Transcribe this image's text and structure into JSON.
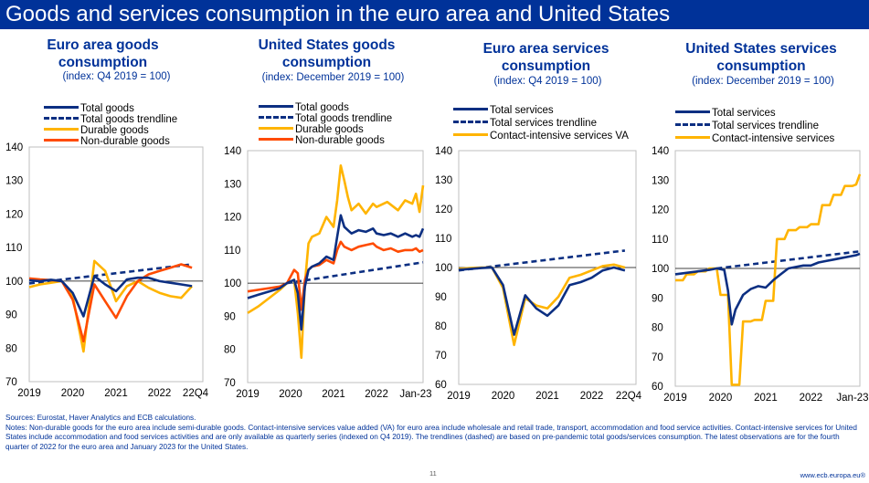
{
  "page_title": "Goods and services consumption in the euro area and United States",
  "colors": {
    "brand_blue": "#003299",
    "navy_line": "#0c2f82",
    "durable_yellow": "#ffb400",
    "nondurable_orange": "#ff4b00",
    "title_bar": "#003299"
  },
  "notes": {
    "sources": "Sources: Eurostat, Haver Analytics and ECB calculations.",
    "text": "Notes: Non-durable goods for the euro area include semi-durable goods. Contact-intensive services value added (VA) for euro area include wholesale and retail trade, transport, accommodation and food service activities. Contact-intensive services for United States include accommodation and food services activities and are only available as quarterly series (indexed on Q4 2019). The trendlines (dashed) are based on pre-pandemic total goods/services consumption. The latest observations are for the fourth quarter of 2022 for the euro area and January 2023 for the United States."
  },
  "footer": {
    "page_number": "11",
    "website": "www.ecb.europa.eu®"
  },
  "chart_data": [
    {
      "type": "line",
      "title": "Euro area goods consumption",
      "subtitle": "(index: Q4 2019 = 100)",
      "x_tick_labels": [
        "2019",
        "2020",
        "2021",
        "2022",
        "22Q4"
      ],
      "x_range": [
        2019.0,
        2023.0
      ],
      "ylim": [
        70,
        140
      ],
      "yticks": [
        70,
        80,
        90,
        100,
        110,
        120,
        130,
        140
      ],
      "legend_position": "top",
      "series": [
        {
          "name": "Total goods",
          "style": "solid",
          "color": "#0c2f82",
          "x": [
            2019.0,
            2019.25,
            2019.5,
            2019.75,
            2020.0,
            2020.25,
            2020.5,
            2020.75,
            2021.0,
            2021.25,
            2021.5,
            2021.75,
            2022.0,
            2022.25,
            2022.5,
            2022.75
          ],
          "values": [
            100.2,
            100.0,
            100.4,
            100.0,
            96.5,
            89.5,
            101.5,
            99.0,
            97.0,
            100.5,
            101.0,
            101.0,
            100.0,
            99.5,
            99.0,
            98.5
          ]
        },
        {
          "name": "Total goods trendline",
          "style": "dashed",
          "color": "#0c2f82",
          "x": [
            2019.0,
            2022.75
          ],
          "values": [
            99.3,
            105.0
          ]
        },
        {
          "name": "Durable goods",
          "style": "solid",
          "color": "#ffb400",
          "x": [
            2019.0,
            2019.25,
            2019.5,
            2019.75,
            2020.0,
            2020.25,
            2020.5,
            2020.75,
            2021.0,
            2021.25,
            2021.5,
            2021.75,
            2022.0,
            2022.25,
            2022.5,
            2022.75
          ],
          "values": [
            98.2,
            99.0,
            99.5,
            100.0,
            95.5,
            79.0,
            106.0,
            103.0,
            94.0,
            98.5,
            100.0,
            98.0,
            96.5,
            95.5,
            95.0,
            98.5
          ]
        },
        {
          "name": "Non-durable goods",
          "style": "solid",
          "color": "#ff4b00",
          "x": [
            2019.0,
            2019.25,
            2019.5,
            2019.75,
            2020.0,
            2020.25,
            2020.5,
            2020.75,
            2021.0,
            2021.25,
            2021.5,
            2021.75,
            2022.0,
            2022.25,
            2022.5,
            2022.75
          ],
          "values": [
            100.8,
            100.5,
            100.3,
            100.0,
            94.5,
            82.0,
            99.0,
            94.0,
            89.0,
            95.5,
            100.0,
            102.0,
            103.0,
            104.0,
            105.0,
            104.0
          ]
        }
      ]
    },
    {
      "type": "line",
      "title": "United States goods consumption",
      "subtitle": "(index: December 2019 = 100)",
      "x_tick_labels": [
        "2019",
        "2020",
        "2021",
        "2022",
        "Jan-23"
      ],
      "x_range": [
        2019.0,
        2023.083
      ],
      "ylim": [
        70,
        140
      ],
      "yticks": [
        70,
        80,
        90,
        100,
        110,
        120,
        130,
        140
      ],
      "legend_position": "top",
      "series": [
        {
          "name": "Total goods",
          "style": "solid",
          "color": "#0c2f82",
          "x": [
            2019.0,
            2019.25,
            2019.5,
            2019.75,
            2019.917,
            2020.083,
            2020.167,
            2020.25,
            2020.333,
            2020.417,
            2020.5,
            2020.667,
            2020.833,
            2021.0,
            2021.083,
            2021.167,
            2021.25,
            2021.417,
            2021.583,
            2021.75,
            2021.917,
            2022.0,
            2022.167,
            2022.333,
            2022.5,
            2022.667,
            2022.833,
            2022.917,
            2023.0,
            2023.083
          ],
          "values": [
            95.5,
            96.5,
            97.5,
            98.5,
            100.0,
            101.0,
            97.0,
            86.0,
            99.0,
            104.0,
            105.0,
            106.0,
            108.0,
            107.0,
            114.0,
            120.5,
            117.0,
            115.0,
            116.0,
            115.5,
            116.5,
            115.0,
            114.5,
            115.0,
            114.0,
            115.0,
            114.0,
            114.5,
            114.0,
            116.5
          ]
        },
        {
          "name": "Total goods trendline",
          "style": "dashed",
          "color": "#0c2f82",
          "x": [
            2019.917,
            2023.083
          ],
          "values": [
            100.0,
            106.3
          ]
        },
        {
          "name": "Durable goods",
          "style": "solid",
          "color": "#ffb400",
          "x": [
            2019.0,
            2019.25,
            2019.5,
            2019.75,
            2019.917,
            2020.083,
            2020.167,
            2020.25,
            2020.333,
            2020.417,
            2020.5,
            2020.667,
            2020.833,
            2021.0,
            2021.083,
            2021.167,
            2021.25,
            2021.333,
            2021.417,
            2021.583,
            2021.75,
            2021.917,
            2022.0,
            2022.25,
            2022.5,
            2022.667,
            2022.833,
            2022.917,
            2023.0,
            2023.083
          ],
          "values": [
            91.0,
            93.0,
            95.5,
            98.0,
            100.0,
            101.0,
            91.0,
            77.5,
            100.0,
            112.0,
            114.0,
            115.0,
            120.0,
            117.0,
            125.0,
            135.5,
            131.0,
            126.0,
            122.0,
            124.0,
            121.0,
            124.0,
            123.0,
            124.5,
            122.0,
            125.0,
            124.0,
            127.0,
            121.5,
            129.5
          ]
        },
        {
          "name": "Non-durable goods",
          "style": "solid",
          "color": "#ff4b00",
          "x": [
            2019.0,
            2019.25,
            2019.5,
            2019.75,
            2019.917,
            2020.083,
            2020.167,
            2020.25,
            2020.333,
            2020.417,
            2020.5,
            2020.667,
            2020.833,
            2021.0,
            2021.083,
            2021.167,
            2021.25,
            2021.417,
            2021.583,
            2021.75,
            2021.917,
            2022.0,
            2022.167,
            2022.333,
            2022.5,
            2022.667,
            2022.833,
            2022.917,
            2023.0,
            2023.083
          ],
          "values": [
            97.5,
            98.0,
            98.5,
            99.0,
            100.0,
            104.0,
            103.0,
            92.0,
            101.0,
            104.0,
            105.0,
            105.5,
            107.0,
            106.0,
            110.0,
            112.5,
            111.0,
            110.0,
            111.0,
            111.5,
            112.0,
            111.0,
            110.0,
            110.5,
            109.5,
            110.0,
            110.0,
            110.5,
            109.5,
            110.0
          ]
        }
      ]
    },
    {
      "type": "line",
      "title": "Euro area services consumption",
      "subtitle": "(index: Q4 2019 = 100)",
      "x_tick_labels": [
        "2019",
        "2020",
        "2021",
        "2022",
        "22Q4"
      ],
      "x_range": [
        2019.0,
        2023.0
      ],
      "ylim": [
        60,
        140
      ],
      "yticks": [
        60,
        70,
        80,
        90,
        100,
        110,
        120,
        130,
        140
      ],
      "legend_position": "top",
      "series": [
        {
          "name": "Total services",
          "style": "solid",
          "color": "#0c2f82",
          "x": [
            2019.0,
            2019.25,
            2019.5,
            2019.75,
            2020.0,
            2020.25,
            2020.5,
            2020.75,
            2021.0,
            2021.25,
            2021.5,
            2021.75,
            2022.0,
            2022.25,
            2022.5,
            2022.75
          ],
          "values": [
            99.2,
            99.5,
            99.8,
            100.0,
            94.0,
            77.0,
            90.5,
            86.0,
            83.5,
            87.0,
            94.0,
            95.0,
            96.5,
            99.0,
            100.0,
            99.0
          ]
        },
        {
          "name": "Total services trendline",
          "style": "dashed",
          "color": "#0c2f82",
          "x": [
            2019.0,
            2022.75
          ],
          "values": [
            99.0,
            105.8
          ]
        },
        {
          "name": "Contact-intensive services VA",
          "style": "solid",
          "color": "#ffb400",
          "x": [
            2019.0,
            2019.25,
            2019.5,
            2019.75,
            2020.0,
            2020.25,
            2020.5,
            2020.75,
            2021.0,
            2021.25,
            2021.5,
            2021.75,
            2022.0,
            2022.25,
            2022.5,
            2022.75
          ],
          "values": [
            99.5,
            99.8,
            100.0,
            100.0,
            93.0,
            73.5,
            89.5,
            87.0,
            86.0,
            90.0,
            96.5,
            97.5,
            99.0,
            100.5,
            101.0,
            100.0
          ]
        }
      ]
    },
    {
      "type": "line",
      "title": "United States services consumption",
      "subtitle": "(index: December 2019 = 100)",
      "x_tick_labels": [
        "2019",
        "2020",
        "2021",
        "2022",
        "Jan-23"
      ],
      "x_range": [
        2019.0,
        2023.083
      ],
      "ylim": [
        60,
        140
      ],
      "yticks": [
        60,
        70,
        80,
        90,
        100,
        110,
        120,
        130,
        140
      ],
      "legend_position": "top",
      "series": [
        {
          "name": "Total services",
          "style": "solid",
          "color": "#0c2f82",
          "x": [
            2019.0,
            2019.25,
            2019.5,
            2019.75,
            2019.917,
            2020.083,
            2020.167,
            2020.25,
            2020.333,
            2020.5,
            2020.667,
            2020.833,
            2021.0,
            2021.167,
            2021.333,
            2021.5,
            2021.667,
            2021.833,
            2022.0,
            2022.167,
            2022.333,
            2022.5,
            2022.667,
            2022.833,
            2023.0,
            2023.083
          ],
          "values": [
            98.0,
            98.5,
            99.0,
            99.5,
            100.0,
            99.5,
            92.5,
            81.0,
            86.0,
            91.0,
            93.0,
            94.0,
            93.5,
            96.0,
            98.0,
            100.0,
            100.5,
            101.0,
            101.0,
            102.0,
            102.5,
            103.0,
            103.5,
            104.0,
            104.5,
            105.0
          ]
        },
        {
          "name": "Total services trendline",
          "style": "dashed",
          "color": "#0c2f82",
          "x": [
            2019.917,
            2023.083
          ],
          "values": [
            100.0,
            105.8
          ]
        },
        {
          "name": "Contact-intensive services",
          "style": "solid",
          "color": "#ffb400",
          "x": [
            2019.0,
            2019.083,
            2019.167,
            2019.25,
            2019.333,
            2019.417,
            2019.5,
            2019.583,
            2019.667,
            2019.75,
            2019.833,
            2019.917,
            2020.0,
            2020.083,
            2020.167,
            2020.25,
            2020.333,
            2020.417,
            2020.5,
            2020.583,
            2020.667,
            2020.75,
            2020.833,
            2020.917,
            2021.0,
            2021.083,
            2021.167,
            2021.25,
            2021.333,
            2021.417,
            2021.5,
            2021.583,
            2021.667,
            2021.75,
            2021.833,
            2021.917,
            2022.0,
            2022.083,
            2022.167,
            2022.25,
            2022.333,
            2022.417,
            2022.5,
            2022.583,
            2022.667,
            2022.75,
            2022.833,
            2022.917,
            2023.0,
            2023.083
          ],
          "values": [
            96.0,
            96.0,
            96.0,
            98.0,
            98.0,
            98.0,
            99.0,
            99.0,
            99.0,
            100.0,
            100.0,
            100.0,
            91.0,
            91.0,
            91.0,
            60.5,
            60.5,
            60.5,
            82.0,
            82.0,
            82.0,
            82.5,
            82.5,
            82.5,
            89.0,
            89.0,
            89.0,
            110.0,
            110.0,
            110.0,
            113.0,
            113.0,
            113.0,
            114.0,
            114.0,
            114.0,
            115.0,
            115.0,
            115.0,
            121.5,
            121.5,
            121.5,
            125.0,
            125.0,
            125.0,
            128.0,
            128.0,
            128.0,
            128.5,
            132.0
          ]
        }
      ]
    }
  ]
}
